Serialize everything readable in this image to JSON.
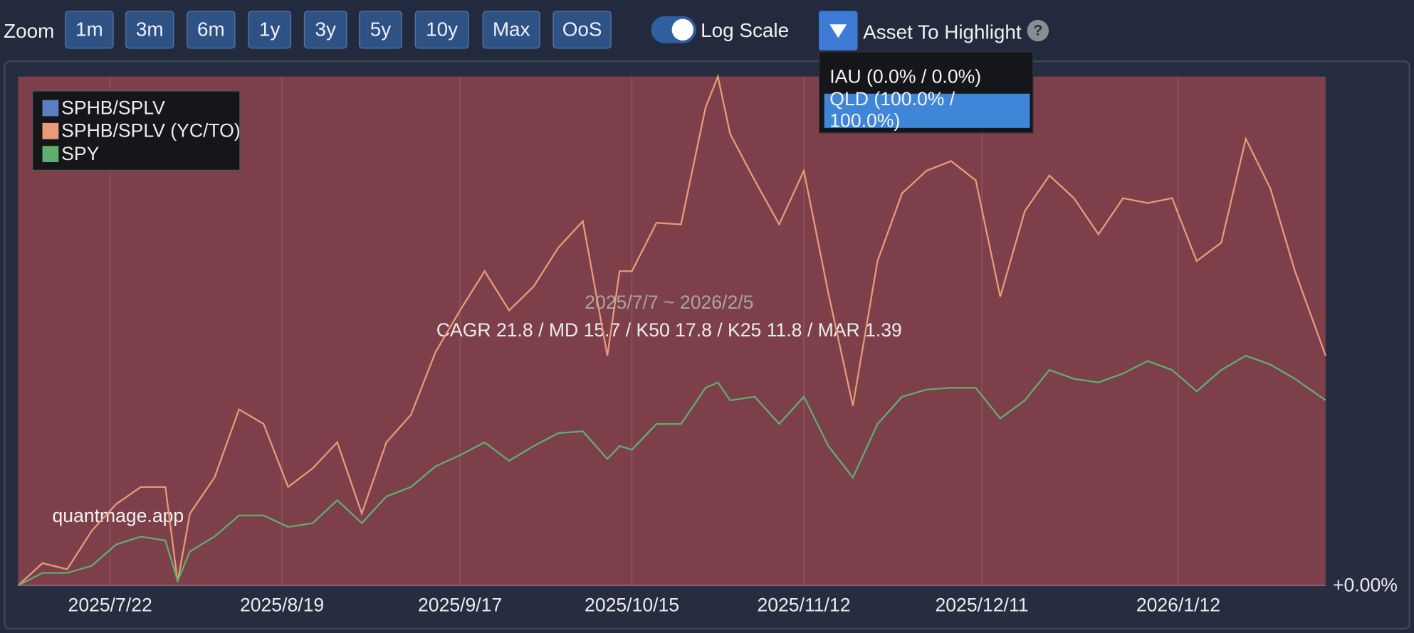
{
  "toolbar": {
    "zoom_label": "Zoom",
    "zoom_buttons": [
      "1m",
      "3m",
      "6m",
      "1y",
      "3y",
      "5y",
      "10y",
      "Max",
      "OoS"
    ],
    "log_scale_label": "Log Scale",
    "highlight_label": "Asset To Highlight",
    "help": "?"
  },
  "dropdown": {
    "items": [
      "IAU (0.0% / 0.0%)",
      "QLD (100.0% / 100.0%)"
    ],
    "selected": 1
  },
  "chart_data": {
    "type": "line",
    "subtitle": "2025/7/7 ~ 2026/2/5",
    "annotation": "CAGR 21.8 / MD 15.7 / K50 17.8 / K25 11.8 / MAR 1.39",
    "watermark": "quantmage.app",
    "x": [
      "2025/7/7",
      "2025/7/11",
      "2025/7/15",
      "2025/7/19",
      "2025/7/23",
      "2025/7/27",
      "2025/7/31",
      "2025/8/2",
      "2025/8/4",
      "2025/8/8",
      "2025/8/12",
      "2025/8/16",
      "2025/8/20",
      "2025/8/24",
      "2025/8/28",
      "2025/9/1",
      "2025/9/5",
      "2025/9/9",
      "2025/9/13",
      "2025/9/17",
      "2025/9/21",
      "2025/9/25",
      "2025/9/29",
      "2025/10/3",
      "2025/10/7",
      "2025/10/11",
      "2025/10/13",
      "2025/10/15",
      "2025/10/19",
      "2025/10/23",
      "2025/10/27",
      "2025/10/29",
      "2025/10/31",
      "2025/11/4",
      "2025/11/8",
      "2025/11/12",
      "2025/11/16",
      "2025/11/20",
      "2025/11/24",
      "2025/11/28",
      "2025/12/2",
      "2025/12/6",
      "2025/12/10",
      "2025/12/14",
      "2025/12/18",
      "2025/12/22",
      "2025/12/26",
      "2025/12/30",
      "2026/1/3",
      "2026/1/7",
      "2026/1/11",
      "2026/1/15",
      "2026/1/19",
      "2026/1/23",
      "2026/1/27",
      "2026/1/31",
      "2026/2/5"
    ],
    "series": [
      {
        "name": "SPHB/SPLV",
        "color": "#5b7fc0",
        "values": [
          null,
          null,
          null,
          null,
          null,
          null,
          null,
          null,
          null,
          null,
          null,
          null,
          null,
          null,
          null,
          null,
          null,
          null,
          null,
          null,
          null,
          null,
          null,
          null,
          null,
          null,
          null,
          null,
          null,
          null,
          null,
          null,
          null,
          null,
          null,
          null,
          null,
          null,
          null,
          null,
          null,
          null,
          null,
          null,
          null,
          null,
          null,
          null,
          null,
          null,
          null,
          null,
          null,
          null,
          null,
          null,
          null
        ]
      },
      {
        "name": "SPHB/SPLV (YC/TO)",
        "color": "#e99a78",
        "values": [
          0,
          1.14,
          0.82,
          2.8,
          4.2,
          5.1,
          5.1,
          0.2,
          3.7,
          5.6,
          9.3,
          8.5,
          5.1,
          6.1,
          7.5,
          3.7,
          7.5,
          9.0,
          12.5,
          14.9,
          17.2,
          14.9,
          16.3,
          18.6,
          20.2,
          12.3,
          17.2,
          17.2,
          20.1,
          20.0,
          27.3,
          29.3,
          25.6,
          22.7,
          20.0,
          23.3,
          15.9,
          9.5,
          17.8,
          21.9,
          23.3,
          23.9,
          22.7,
          15.7,
          20.8,
          23.0,
          21.6,
          19.4,
          21.6,
          21.3,
          21.6,
          17.8,
          18.9,
          25.3,
          22.2,
          17.2,
          12.3
        ]
      },
      {
        "name": "SPY",
        "color": "#5fae6e",
        "values": [
          0,
          0.64,
          0.64,
          1.0,
          2.1,
          2.5,
          2.3,
          0.23,
          1.74,
          2.5,
          3.6,
          3.6,
          3.0,
          3.2,
          4.4,
          3.2,
          4.6,
          5.1,
          6.2,
          6.8,
          7.5,
          6.5,
          7.3,
          8.0,
          8.1,
          6.6,
          7.3,
          7.1,
          8.5,
          8.5,
          10.5,
          10.8,
          9.8,
          10.0,
          8.5,
          10.0,
          7.3,
          5.6,
          8.5,
          10.0,
          10.4,
          10.5,
          10.5,
          8.8,
          9.8,
          11.5,
          11.0,
          10.8,
          11.3,
          12.0,
          11.5,
          10.3,
          11.5,
          12.3,
          11.8,
          11.0,
          9.8
        ]
      }
    ],
    "xlim": [
      "2025/7/7",
      "2026/2/5"
    ],
    "xticks": [
      "2025/7/22",
      "2025/8/19",
      "2025/9/17",
      "2025/10/15",
      "2025/11/12",
      "2025/12/11",
      "2026/1/12"
    ],
    "ylim": [
      0,
      29.3
    ],
    "yticks": [
      {
        "value": 0,
        "label": "+0.00%"
      }
    ],
    "log_scale": true,
    "grid": true,
    "legend": "upper left",
    "band_color": "#7d404b"
  }
}
